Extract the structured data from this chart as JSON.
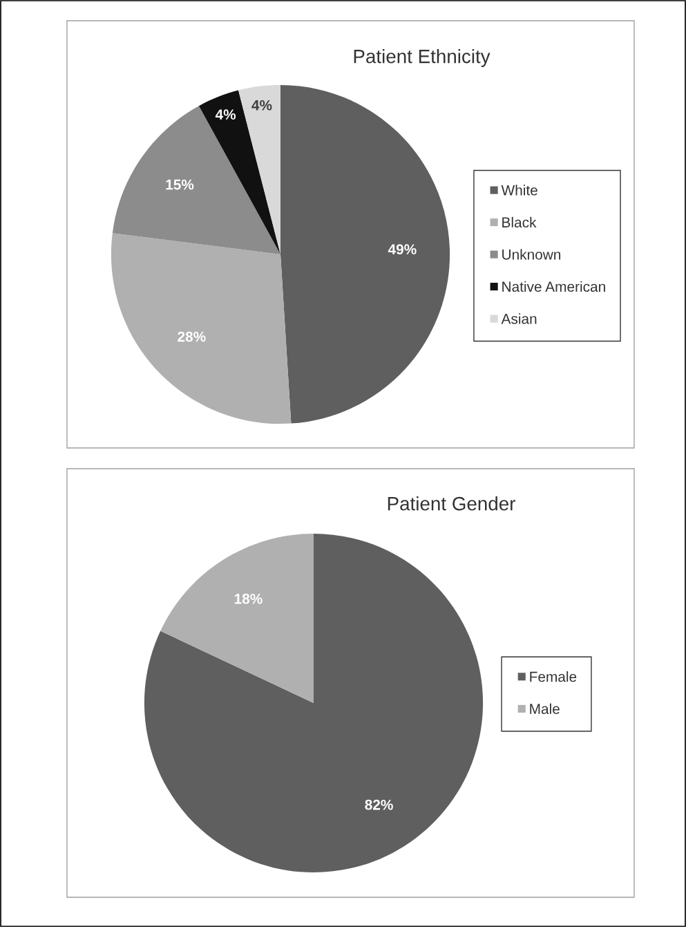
{
  "chart_data": [
    {
      "type": "pie",
      "title": "Patient Ethnicity",
      "categories": [
        "White",
        "Black",
        "Unknown",
        "Native American",
        "Asian"
      ],
      "values": [
        49,
        28,
        15,
        4,
        4
      ],
      "colors": [
        "#5f5f5f",
        "#b0b0b0",
        "#8c8c8c",
        "#111111",
        "#d9d9d9"
      ],
      "value_labels": [
        "49%",
        "28%",
        "15%",
        "4%",
        "4%"
      ],
      "legend": "right"
    },
    {
      "type": "pie",
      "title": "Patient Gender",
      "categories": [
        "Female",
        "Male"
      ],
      "values": [
        82,
        18
      ],
      "colors": [
        "#5f5f5f",
        "#b0b0b0"
      ],
      "value_labels": [
        "82%",
        "18%"
      ],
      "legend": "right"
    }
  ]
}
